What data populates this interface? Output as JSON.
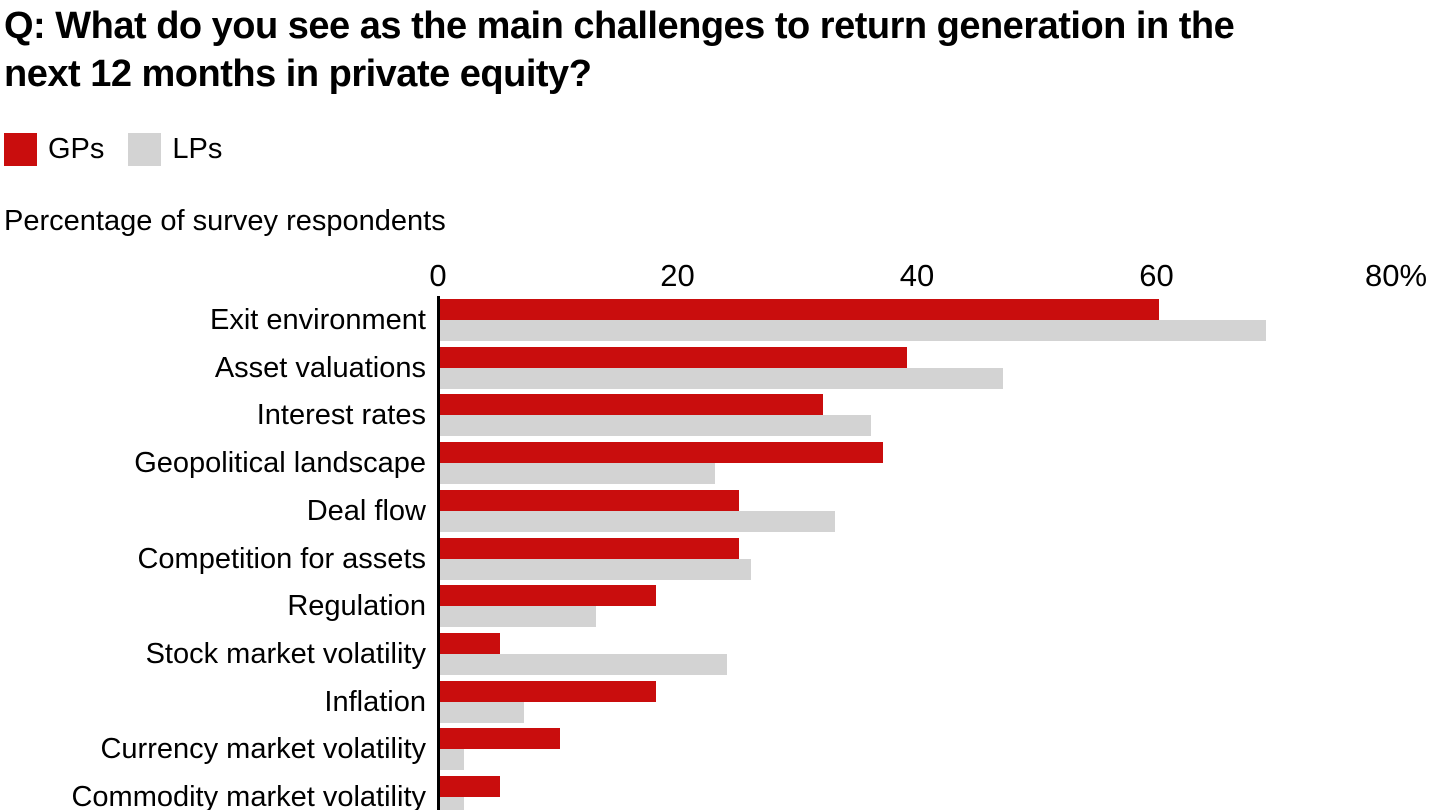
{
  "title_lines": [
    "Q: What do you see as the main challenges to return generation in the",
    "next 12 months in private equity?"
  ],
  "legend": [
    {
      "label": "GPs",
      "color": "#C90D0D"
    },
    {
      "label": "LPs",
      "color": "#D3D3D3"
    }
  ],
  "subtitle": "Percentage of survey respondents",
  "chart_data": {
    "type": "bar",
    "orientation": "horizontal",
    "title": "Q: What do you see as the main challenges to return generation in the next 12 months in private equity?",
    "xlabel": "Percentage of survey respondents",
    "xlim": [
      0,
      80
    ],
    "grid": false,
    "legend_position": "top-left",
    "x_ticks": [
      {
        "value": 0,
        "label": "0"
      },
      {
        "value": 20,
        "label": "20"
      },
      {
        "value": 40,
        "label": "40"
      },
      {
        "value": 60,
        "label": "60"
      },
      {
        "value": 80,
        "label": "80%"
      }
    ],
    "categories": [
      "Exit environment",
      "Asset valuations",
      "Interest rates",
      "Geopolitical landscape",
      "Deal flow",
      "Competition for assets",
      "Regulation",
      "Stock market volatility",
      "Inflation",
      "Currency market volatility",
      "Commodity market volatility"
    ],
    "series": [
      {
        "name": "GPs",
        "color": "#C90D0D",
        "values": [
          60,
          39,
          32,
          37,
          25,
          25,
          18,
          5,
          18,
          10,
          5
        ]
      },
      {
        "name": "LPs",
        "color": "#D3D3D3",
        "values": [
          69,
          47,
          36,
          23,
          33,
          26,
          13,
          24,
          7,
          2,
          2
        ]
      }
    ]
  }
}
